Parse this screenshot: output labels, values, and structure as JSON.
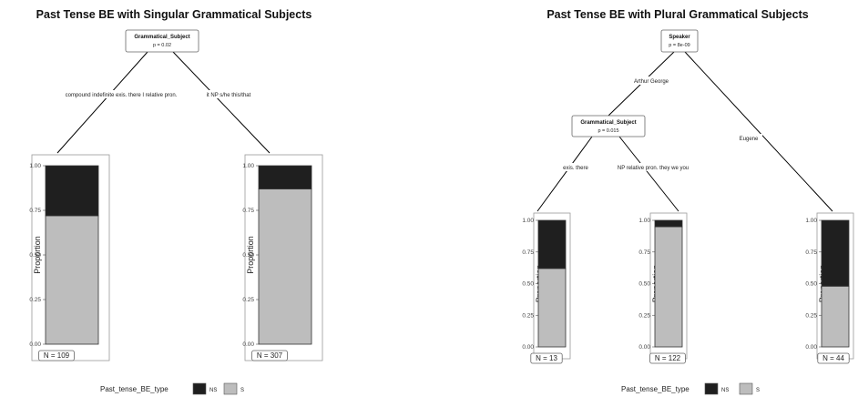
{
  "colors": {
    "NS": "#1f1f1f",
    "S": "#bdbdbd",
    "frame": "#999999",
    "edge": "#000000"
  },
  "chart_data": [
    {
      "type": "bar",
      "title": "Past Tense BE with Singular Grammatical Subjects",
      "ylabel": "Proportion",
      "ylim": [
        0,
        1
      ],
      "yticks": [
        "0.00",
        "0.25",
        "0.50",
        "0.75",
        "1.00"
      ],
      "split": {
        "variable": "Grammatical_Subject",
        "p": "p = 0.02"
      },
      "edges": [
        "compound indefinite  exis. there I relative pron.",
        "it NP s/he this/that"
      ],
      "terminal_nodes": [
        {
          "n": "N = 109",
          "series": [
            {
              "name": "NS",
              "value": 0.28
            },
            {
              "name": "S",
              "value": 0.72
            }
          ]
        },
        {
          "n": "N = 307",
          "series": [
            {
              "name": "NS",
              "value": 0.13
            },
            {
              "name": "S",
              "value": 0.87
            }
          ]
        }
      ]
    },
    {
      "type": "bar",
      "title": "Past Tense BE with Plural Grammatical Subjects",
      "ylabel": "Proportion",
      "ylim": [
        0,
        1
      ],
      "yticks": [
        "0.00",
        "0.25",
        "0.50",
        "0.75",
        "1.00"
      ],
      "root_split": {
        "variable": "Speaker",
        "p": "p = 8e-09"
      },
      "inner_split": {
        "variable": "Grammatical_Subject",
        "p": "p = 0.015"
      },
      "edges": [
        "Arthur George",
        "Eugene",
        "exis. there",
        "NP relative pron. they we you"
      ],
      "terminal_nodes": [
        {
          "n": "N = 13",
          "series": [
            {
              "name": "NS",
              "value": 0.38
            },
            {
              "name": "S",
              "value": 0.62
            }
          ]
        },
        {
          "n": "N = 122",
          "series": [
            {
              "name": "NS",
              "value": 0.05
            },
            {
              "name": "S",
              "value": 0.95
            }
          ]
        },
        {
          "n": "N = 44",
          "series": [
            {
              "name": "NS",
              "value": 0.52
            },
            {
              "name": "S",
              "value": 0.48
            }
          ]
        }
      ]
    }
  ],
  "legends": [
    {
      "title": "Past_tense_BE_type",
      "items": [
        "NS",
        "S"
      ]
    },
    {
      "title": "Past_tense_BE_type",
      "items": [
        "NS",
        "S"
      ]
    }
  ]
}
